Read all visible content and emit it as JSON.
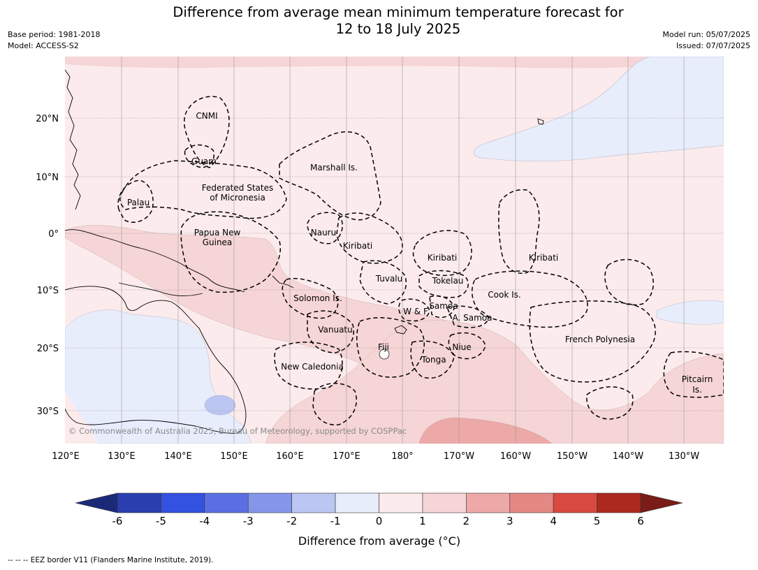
{
  "title": {
    "line1": "Difference from average mean minimum temperature forecast for",
    "line2": "12 to 18 July 2025"
  },
  "meta_left": {
    "base_period": "Base period: 1981-2018",
    "model": "Model: ACCESS-S2"
  },
  "meta_right": {
    "model_run": "Model run: 05/07/2025",
    "issued": "Issued: 07/07/2025"
  },
  "map": {
    "lat_labels": [
      "20°N",
      "10°N",
      "0°",
      "10°S",
      "20°S",
      "30°S"
    ],
    "lon_labels": [
      "120°E",
      "130°E",
      "140°E",
      "150°E",
      "160°E",
      "170°E",
      "180°",
      "170°W",
      "160°W",
      "150°W",
      "140°W",
      "130°W"
    ],
    "regions": {
      "cnmi": "CNMI",
      "guam": "Guam",
      "marshall": "Marshall Is.",
      "fsm_line1": "Federated States",
      "fsm_line2": "of Micronesia",
      "palau": "Palau",
      "png_line1": "Papua New",
      "png_line2": "Guinea",
      "nauru": "Nauru",
      "kiribati_w": "Kiribati",
      "kiribati_c": "Kiribati",
      "kiribati_e": "Kiribati",
      "tuvalu": "Tuvalu",
      "tokelau": "Tokelau",
      "cook": "Cook Is.",
      "solomon": "Solomon Is.",
      "wf": "W & F",
      "samoa": "Samoa",
      "asamoa": "A. Samoa",
      "vanuatu": "Vanuatu",
      "fiji": "Fiji",
      "niue": "Niue",
      "tonga": "Tonga",
      "new_caledonia": "New Caledonia",
      "french_polynesia": "French Polynesia",
      "pitcairn_line1": "Pitcairn",
      "pitcairn_line2": "Is."
    },
    "copyright": "© Commonwealth of Australia 2025, Bureau of Meteorology, supported by COSPPac"
  },
  "colorbar": {
    "ticks": [
      "-6",
      "-5",
      "-4",
      "-3",
      "-2",
      "-1",
      "0",
      "1",
      "2",
      "3",
      "4",
      "5",
      "6"
    ],
    "label": "Difference from average (°C)",
    "colors": {
      "below_min": "#1b2a78",
      "bins": [
        "#2a3eb0",
        "#3352e0",
        "#5a70e2",
        "#8596ea",
        "#bcc6f2",
        "#e8edfc",
        "#fcebec",
        "#f6d5d6",
        "#eca9a8",
        "#e48884",
        "#d84a40",
        "#ac2920"
      ],
      "above_max": "#7a1c18"
    }
  },
  "eez_note": "--  --  -- EEZ border V11 (Flanders Marine Institute, 2019)."
}
